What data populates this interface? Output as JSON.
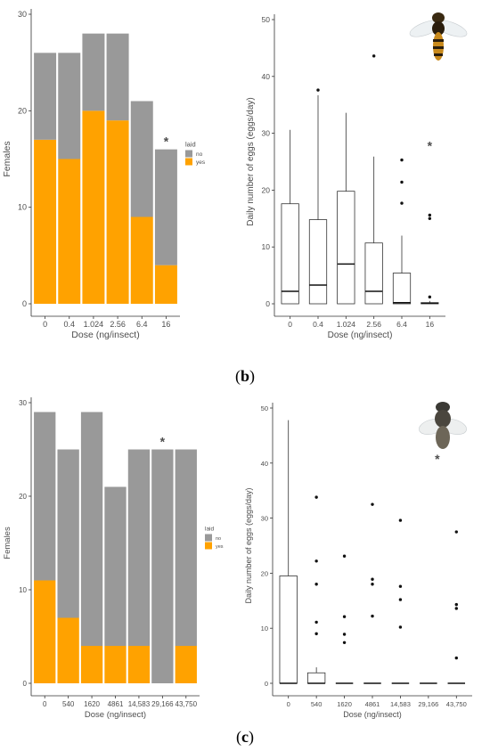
{
  "colors": {
    "no": "#999999",
    "yes": "#FFA200",
    "axis": "#333333",
    "text": "#4d4d4d",
    "box": "#333333"
  },
  "panel_labels": {
    "b": "(b)",
    "c": "(c)"
  },
  "chart_data": [
    {
      "type": "bar",
      "stacked": true,
      "panel": "b-left",
      "xlabel": "Dose (ng/insect)",
      "ylabel": "Females",
      "ylim": [
        0,
        30
      ],
      "yticks": [
        0,
        10,
        20,
        30
      ],
      "categories": [
        "0",
        "0.4",
        "1.024",
        "2.56",
        "6.4",
        "16"
      ],
      "series": [
        {
          "name": "no",
          "values": [
            9,
            11,
            8,
            9,
            12,
            12
          ]
        },
        {
          "name": "yes",
          "values": [
            17,
            15,
            20,
            19,
            9,
            4
          ]
        }
      ],
      "legend": {
        "title": "laid",
        "entries": [
          "no",
          "yes"
        ],
        "placement": "right"
      },
      "annotations": [
        {
          "category": "16",
          "text": "*"
        }
      ]
    },
    {
      "type": "box",
      "panel": "b-right",
      "xlabel": "Dose (ng/insect)",
      "ylabel": "Daily number of eggs (eggs/day)",
      "ylim": [
        0,
        50
      ],
      "yticks": [
        0,
        10,
        20,
        30,
        40,
        50
      ],
      "categories": [
        "0",
        "0.4",
        "1.024",
        "2.56",
        "6.4",
        "16"
      ],
      "boxes": [
        {
          "min": 0,
          "q1": 0,
          "median": 2.2,
          "q3": 17.6,
          "max": 30.6,
          "outliers": []
        },
        {
          "min": 0,
          "q1": 0,
          "median": 3.3,
          "q3": 14.8,
          "max": 36.7,
          "outliers": [
            37.6
          ]
        },
        {
          "min": 0,
          "q1": 0,
          "median": 7.0,
          "q3": 19.8,
          "max": 33.6,
          "outliers": []
        },
        {
          "min": 0,
          "q1": 0,
          "median": 2.2,
          "q3": 10.7,
          "max": 25.9,
          "outliers": [
            43.6
          ]
        },
        {
          "min": 0,
          "q1": 0,
          "median": 0.2,
          "q3": 5.4,
          "max": 12.0,
          "outliers": [
            17.7,
            21.4,
            25.3
          ]
        },
        {
          "min": 0,
          "q1": 0,
          "median": 0.1,
          "q3": 0.2,
          "max": 0.5,
          "outliers": [
            1.2,
            15.0,
            15.6
          ]
        }
      ],
      "annotations": [
        {
          "category": "16",
          "text": "*"
        }
      ]
    },
    {
      "type": "bar",
      "stacked": true,
      "panel": "c-left",
      "xlabel": "Dose (ng/insect)",
      "ylabel": "Females",
      "ylim": [
        0,
        30
      ],
      "yticks": [
        0,
        10,
        20,
        30
      ],
      "categories": [
        "0",
        "540",
        "1620",
        "4861",
        "14,583",
        "29,166",
        "43,750"
      ],
      "series": [
        {
          "name": "no",
          "values": [
            18,
            18,
            25,
            17,
            21,
            25,
            21
          ]
        },
        {
          "name": "yes",
          "values": [
            11,
            7,
            4,
            4,
            4,
            0,
            4
          ]
        }
      ],
      "legend": {
        "title": "laid",
        "entries": [
          "no",
          "yes"
        ],
        "placement": "right"
      },
      "annotations": [
        {
          "category": "29,166",
          "text": "*"
        }
      ]
    },
    {
      "type": "box",
      "panel": "c-right",
      "xlabel": "Dose (ng/insect)",
      "ylabel": "Daily number of eggs (eggs/day)",
      "ylim": [
        0,
        50
      ],
      "yticks": [
        0,
        10,
        20,
        30,
        40,
        50
      ],
      "categories": [
        "0",
        "540",
        "1620",
        "4861",
        "14,583",
        "29,166",
        "43,750"
      ],
      "boxes": [
        {
          "min": 0,
          "q1": 0,
          "median": 0,
          "q3": 19.5,
          "max": 47.8,
          "outliers": []
        },
        {
          "min": 0,
          "q1": 0,
          "median": 0,
          "q3": 1.9,
          "max": 2.9,
          "outliers": [
            9.0,
            11.1,
            18.0,
            22.2,
            33.8
          ]
        },
        {
          "min": 0,
          "q1": 0,
          "median": 0,
          "q3": 0,
          "max": 0,
          "outliers": [
            7.4,
            8.9,
            12.1,
            23.1
          ]
        },
        {
          "min": 0,
          "q1": 0,
          "median": 0,
          "q3": 0,
          "max": 0,
          "outliers": [
            12.2,
            18.0,
            18.9,
            32.5
          ]
        },
        {
          "min": 0,
          "q1": 0,
          "median": 0,
          "q3": 0,
          "max": 0,
          "outliers": [
            10.2,
            15.2,
            17.6,
            29.6
          ]
        },
        {
          "min": 0,
          "q1": 0,
          "median": 0,
          "q3": 0,
          "max": 0,
          "outliers": []
        },
        {
          "min": 0,
          "q1": 0,
          "median": 0,
          "q3": 0,
          "max": 0,
          "outliers": [
            4.6,
            13.6,
            14.3,
            27.5
          ]
        }
      ],
      "annotations": [
        {
          "category": "29,166",
          "text": "*"
        }
      ]
    }
  ]
}
